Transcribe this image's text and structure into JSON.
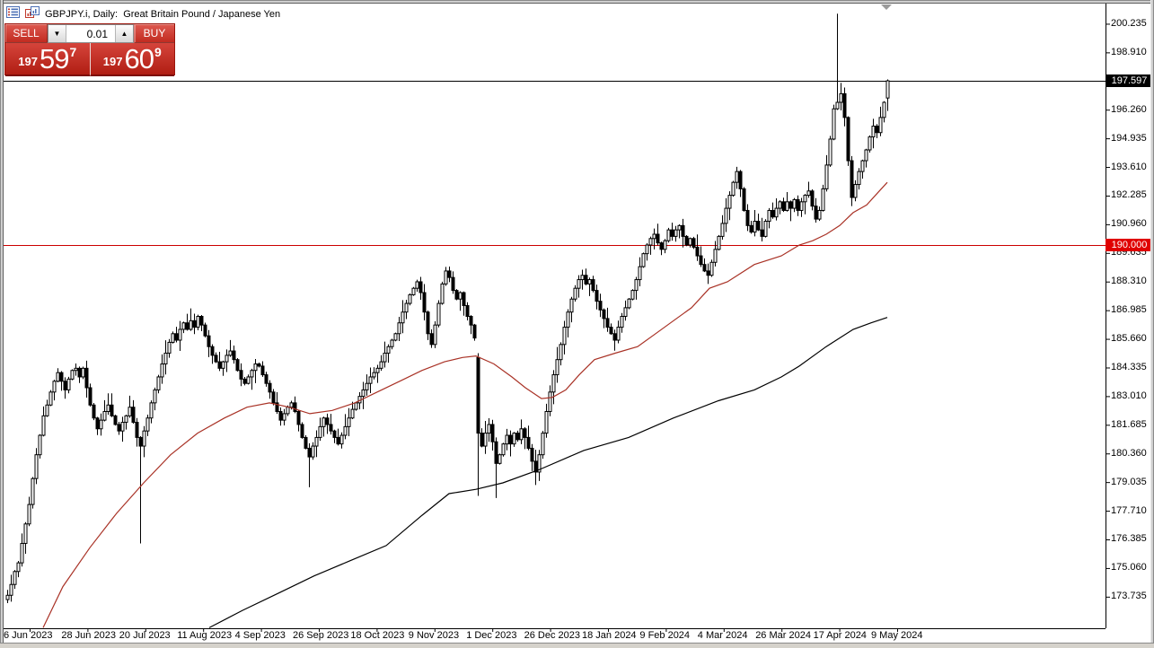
{
  "window": {
    "title": "GBPJPY.i, Daily:  Great Britain Pound / Japanese Yen"
  },
  "trade_panel": {
    "sell_label": "SELL",
    "buy_label": "BUY",
    "volume_value": "0.01",
    "spin_down": "▼",
    "spin_up": "▲",
    "sell_price": {
      "prefix": "197",
      "big": "59",
      "sup": "7"
    },
    "buy_price": {
      "prefix": "197",
      "big": "60",
      "sup": "9"
    }
  },
  "chart_data": {
    "type": "candlestick",
    "symbol": "GBPJPY.i",
    "timeframe": "Daily",
    "title": "Great Britain Pound / Japanese Yen",
    "bid_price": 197.597,
    "bid_tag": "197.597",
    "horizontal_line_price": 190.0,
    "horizontal_line_tag": "190.000",
    "spike_high": 200.7,
    "price_axis_ticks": [
      "200.235",
      "198.910",
      "196.260",
      "194.935",
      "193.610",
      "192.285",
      "190.960",
      "189.635",
      "188.310",
      "186.985",
      "185.660",
      "184.335",
      "183.010",
      "181.685",
      "180.360",
      "179.035",
      "177.710",
      "176.385",
      "175.060",
      "173.735"
    ],
    "time_axis_labels": [
      "6 Jun 2023",
      "28 Jun 2023",
      "20 Jul 2023",
      "11 Aug 2023",
      "4 Sep 2023",
      "26 Sep 2023",
      "18 Oct 2023",
      "9 Nov 2023",
      "1 Dec 2023",
      "26 Dec 2023",
      "18 Jan 2024",
      "9 Feb 2024",
      "4 Mar 2024",
      "26 Mar 2024",
      "17 Apr 2024",
      "9 May 2024"
    ],
    "candles": {
      "closes": [
        173.8,
        174.3,
        174.9,
        175.3,
        176.2,
        177.1,
        178.0,
        179.2,
        180.3,
        181.2,
        182.1,
        182.6,
        183.2,
        183.7,
        184.1,
        183.7,
        183.3,
        183.8,
        184.2,
        184.3,
        183.9,
        184.3,
        183.4,
        182.6,
        182.0,
        181.5,
        181.9,
        182.3,
        182.6,
        182.1,
        181.7,
        181.4,
        181.8,
        182.1,
        182.5,
        181.8,
        181.1,
        180.7,
        181.4,
        182.0,
        182.7,
        183.3,
        183.9,
        184.5,
        185.0,
        185.5,
        185.9,
        185.6,
        186.1,
        186.4,
        186.1,
        186.5,
        186.2,
        186.7,
        186.3,
        185.8,
        185.3,
        184.9,
        184.6,
        184.3,
        184.6,
        184.9,
        185.1,
        184.7,
        184.2,
        183.8,
        183.6,
        183.9,
        184.2,
        184.5,
        184.4,
        184.0,
        183.6,
        183.2,
        182.7,
        182.3,
        181.9,
        182.2,
        182.5,
        182.7,
        182.3,
        181.7,
        181.1,
        180.6,
        180.2,
        180.7,
        181.1,
        181.6,
        182.0,
        181.7,
        181.4,
        181.1,
        180.8,
        181.2,
        181.6,
        182.0,
        182.4,
        182.7,
        183.0,
        183.3,
        183.6,
        183.9,
        184.1,
        184.3,
        184.6,
        185.0,
        185.3,
        185.6,
        185.9,
        186.4,
        186.9,
        187.3,
        187.7,
        188.0,
        188.3,
        187.8,
        186.9,
        185.9,
        185.4,
        186.3,
        187.3,
        188.2,
        188.8,
        188.5,
        187.9,
        187.5,
        187.8,
        187.2,
        186.7,
        186.3,
        185.7,
        181.3,
        180.7,
        181.3,
        181.7,
        180.9,
        179.9,
        180.3,
        180.8,
        181.2,
        180.8,
        181.3,
        181.0,
        181.5,
        181.1,
        180.6,
        180.0,
        179.5,
        180.3,
        181.3,
        182.3,
        183.2,
        184.0,
        184.7,
        185.4,
        186.2,
        186.9,
        187.5,
        188.0,
        188.4,
        188.6,
        188.2,
        188.4,
        187.9,
        187.4,
        187.0,
        186.6,
        186.2,
        185.9,
        185.6,
        186.2,
        186.7,
        187.1,
        187.5,
        187.9,
        188.4,
        189.0,
        189.6,
        190.0,
        190.3,
        190.5,
        190.1,
        189.8,
        190.2,
        190.7,
        190.4,
        190.7,
        190.9,
        190.4,
        190.0,
        190.3,
        189.9,
        189.5,
        189.1,
        188.8,
        188.6,
        189.2,
        189.8,
        190.4,
        191.0,
        191.7,
        192.3,
        192.9,
        193.4,
        192.6,
        191.6,
        190.9,
        190.6,
        191.1,
        190.7,
        190.4,
        191.1,
        191.6,
        191.3,
        191.7,
        192.0,
        191.6,
        192.0,
        191.7,
        192.1,
        191.6,
        192.0,
        192.3,
        192.5,
        191.8,
        191.2,
        191.6,
        192.6,
        193.7,
        194.9,
        196.3,
        196.6,
        197.0,
        195.9,
        193.9,
        192.2,
        192.8,
        193.4,
        193.9,
        194.4,
        195.0,
        195.5,
        195.2,
        195.9,
        196.6,
        197.5
      ],
      "overrides": {
        "37": {
          "low": 176.2
        },
        "84": {
          "low": 178.8
        },
        "131": {
          "open": 184.8,
          "high": 185.0,
          "low": 178.4
        },
        "136": {
          "low": 178.3
        },
        "147": {
          "low": 178.9
        },
        "231": {
          "high": 200.7
        },
        "235": {
          "low": 191.8
        },
        "245": {
          "open": 196.8,
          "close": 197.597,
          "high": 197.66,
          "low": 196.2
        }
      }
    },
    "ma_red": [
      [
        48,
        172.3
      ],
      [
        70,
        174.2
      ],
      [
        100,
        176.0
      ],
      [
        130,
        177.6
      ],
      [
        160,
        179.0
      ],
      [
        190,
        180.3
      ],
      [
        220,
        181.3
      ],
      [
        250,
        182.0
      ],
      [
        275,
        182.5
      ],
      [
        300,
        182.7
      ],
      [
        322,
        182.5
      ],
      [
        345,
        182.2
      ],
      [
        370,
        182.35
      ],
      [
        395,
        182.7
      ],
      [
        420,
        183.2
      ],
      [
        445,
        183.7
      ],
      [
        470,
        184.2
      ],
      [
        495,
        184.6
      ],
      [
        515,
        184.8
      ],
      [
        530,
        184.87
      ],
      [
        550,
        184.5
      ],
      [
        570,
        183.9
      ],
      [
        585,
        183.4
      ],
      [
        603,
        182.9
      ],
      [
        615,
        182.95
      ],
      [
        630,
        183.3
      ],
      [
        645,
        184.0
      ],
      [
        662,
        184.7
      ],
      [
        685,
        185.0
      ],
      [
        710,
        185.3
      ],
      [
        730,
        185.9
      ],
      [
        750,
        186.5
      ],
      [
        770,
        187.1
      ],
      [
        790,
        188.0
      ],
      [
        810,
        188.3
      ],
      [
        840,
        189.1
      ],
      [
        870,
        189.5
      ],
      [
        890,
        190.0
      ],
      [
        905,
        190.2
      ],
      [
        920,
        190.5
      ],
      [
        935,
        190.9
      ],
      [
        950,
        191.5
      ],
      [
        965,
        191.85
      ],
      [
        977,
        192.4
      ],
      [
        988,
        192.9
      ]
    ],
    "ma_black": [
      [
        233,
        172.3
      ],
      [
        270,
        173.1
      ],
      [
        310,
        173.9
      ],
      [
        350,
        174.7
      ],
      [
        390,
        175.4
      ],
      [
        430,
        176.1
      ],
      [
        470,
        177.5
      ],
      [
        500,
        178.5
      ],
      [
        530,
        178.7
      ],
      [
        560,
        179.0
      ],
      [
        600,
        179.6
      ],
      [
        650,
        180.5
      ],
      [
        700,
        181.1
      ],
      [
        750,
        182.0
      ],
      [
        800,
        182.8
      ],
      [
        840,
        183.3
      ],
      [
        870,
        183.9
      ],
      [
        890,
        184.4
      ],
      [
        920,
        185.3
      ],
      [
        950,
        186.1
      ],
      [
        970,
        186.4
      ],
      [
        988,
        186.65
      ]
    ],
    "colors": {
      "bull_body": "#ffffff",
      "bear_body": "#000000",
      "wick": "#000000",
      "ma_fast": "#a93226",
      "ma_slow": "#000000",
      "hline": "#cc0000",
      "hline_tag_bg": "#e00000",
      "bid_line": "#000000",
      "bid_tag_bg": "#000000",
      "axis": "#000000"
    },
    "legend_position": "none",
    "grid": false
  }
}
